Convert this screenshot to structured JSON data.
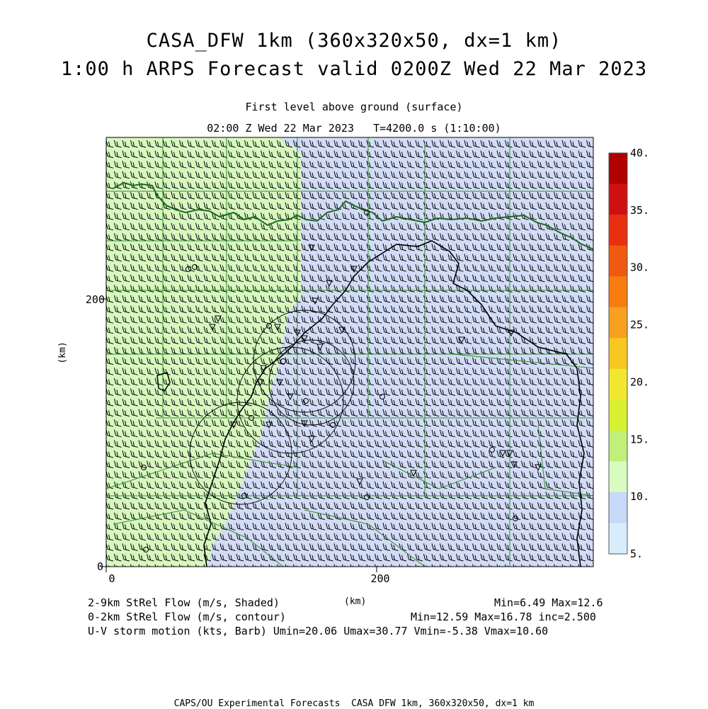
{
  "header": {
    "title_line1": "CASA_DFW 1km (360x320x50, dx=1 km)",
    "title_line2": "1:00 h ARPS Forecast valid 0200Z Wed 22 Mar 2023",
    "subtitle_level": "First level above ground (surface)",
    "subtitle_time": "02:00 Z Wed 22 Mar 2023   T=4200.0 s (1:10:00)"
  },
  "axes": {
    "x_unit": "(km)",
    "y_unit": "(km)",
    "x_ticks": [
      0,
      200
    ],
    "y_ticks": [
      0,
      200
    ],
    "x_range": [
      0,
      360
    ],
    "y_range": [
      0,
      320
    ]
  },
  "colorbar": {
    "labels": [
      "40.",
      "35.",
      "30.",
      "25.",
      "20.",
      "15.",
      "10.",
      "5."
    ],
    "colors": [
      "#b00000",
      "#d01010",
      "#e83010",
      "#f05a10",
      "#f87c10",
      "#f8a020",
      "#f8c820",
      "#f0e830",
      "#d8f030",
      "#c0f078",
      "#d8fcc0",
      "#c8d8f8",
      "#d8ecfc"
    ]
  },
  "legend": {
    "line1_left": "2-9km StRel Flow (m/s, Shaded)",
    "line1_center": "(km)",
    "line1_right": "Min=6.49 Max=12.6",
    "line2_left": "0-2km StRel Flow (m/s, contour)",
    "line2_right": "Min=12.59 Max=16.78 inc=2.500",
    "line3": "U-V storm motion (kts, Barb) Umin=20.06 Umax=30.77 Vmin=-5.38 Vmax=10.60"
  },
  "footer": "CAPS/OU Experimental Forecasts  CASA DFW 1km, 360x320x50, dx=1 km",
  "map_features": [
    "county-borders",
    "state-border",
    "red-river",
    "radar-range-rings",
    "station-markers",
    "wind-barbs"
  ],
  "colors": {
    "shade_green": "#d7f7bf",
    "shade_blue": "#d3dcf6",
    "county_line": "#2e8b2e",
    "barb": "#000000"
  }
}
